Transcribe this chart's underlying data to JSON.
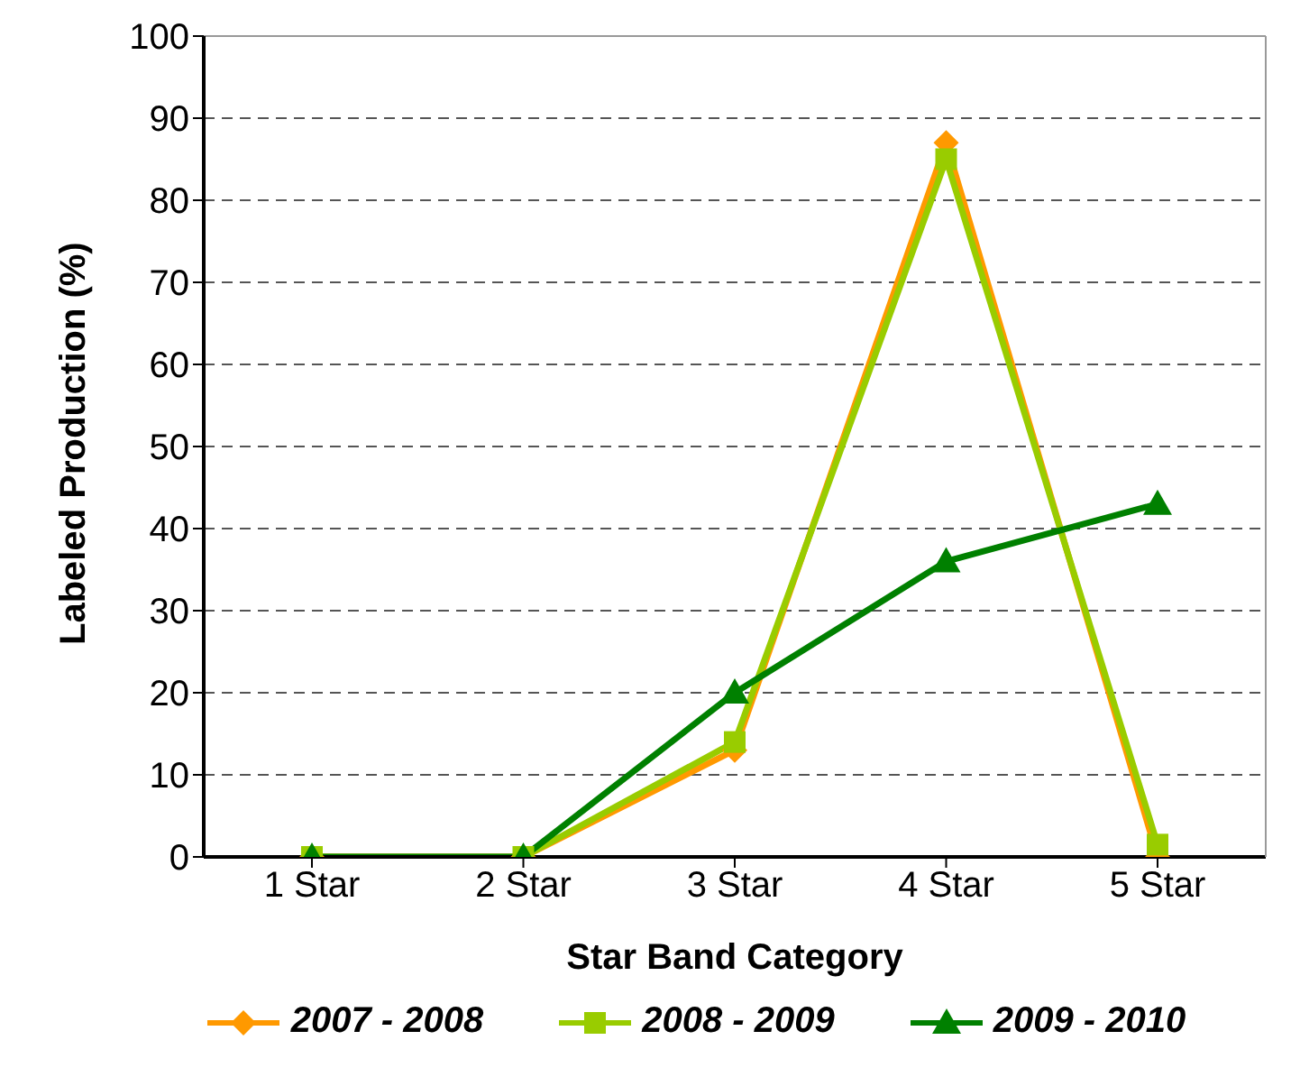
{
  "chart_data": {
    "type": "line",
    "xlabel": "Star Band Category",
    "ylabel": "Labeled Production (%)",
    "categories": [
      "1 Star",
      "2 Star",
      "3 Star",
      "4 Star",
      "5 Star"
    ],
    "series": [
      {
        "name": "2007 - 2008",
        "color": "#ff9900",
        "marker": "diamond",
        "values": [
          0,
          0,
          13,
          87,
          0
        ]
      },
      {
        "name": "2008 - 2009",
        "color": "#99cc00",
        "marker": "square",
        "values": [
          0,
          0,
          14,
          85,
          1.5
        ]
      },
      {
        "name": "2009 - 2010",
        "color": "#008000",
        "marker": "triangle",
        "values": [
          0,
          0,
          20,
          36,
          43
        ]
      }
    ],
    "ylim": [
      0,
      100
    ],
    "yticks": [
      0,
      10,
      20,
      30,
      40,
      50,
      60,
      70,
      80,
      90,
      100
    ],
    "grid": "y",
    "legend": "bottom"
  }
}
